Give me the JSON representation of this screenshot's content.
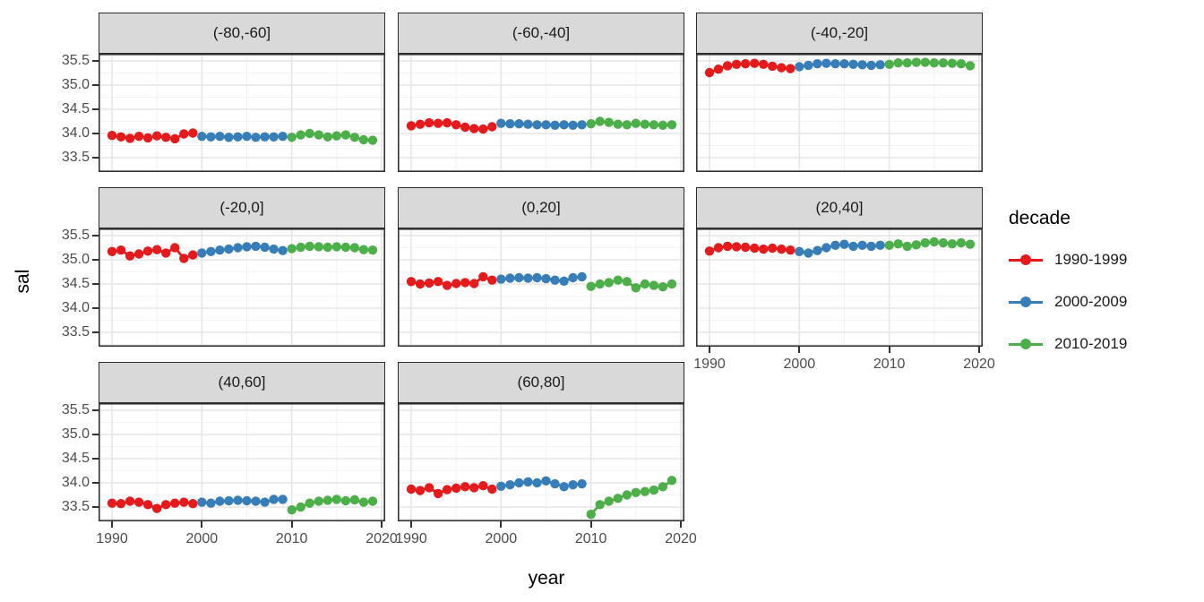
{
  "axes": {
    "x_label": "year",
    "y_label": "sal"
  },
  "legend": {
    "title": "decade",
    "items": [
      {
        "label": "1990-1999",
        "color": "#E41A1C"
      },
      {
        "label": "2000-2009",
        "color": "#377EB8"
      },
      {
        "label": "2010-2019",
        "color": "#4DAF4A"
      }
    ]
  },
  "chart_data": {
    "type": "scatter",
    "geom": "point+line",
    "title": "",
    "xlabel": "year",
    "ylabel": "sal",
    "facet_layout": "wrap-3-columns",
    "xlim": [
      1988.5,
      2020.5
    ],
    "ylim": [
      33.2,
      35.65
    ],
    "x_ticks": [
      {
        "label": "1990",
        "value": 1990
      },
      {
        "label": "2000",
        "value": 2000
      },
      {
        "label": "2010",
        "value": 2010
      },
      {
        "label": "2020",
        "value": 2020
      }
    ],
    "y_ticks": [
      {
        "label": "35.5",
        "value": 35.5
      },
      {
        "label": "35.0",
        "value": 35.0
      },
      {
        "label": "34.5",
        "value": 34.5
      },
      {
        "label": "34.0",
        "value": 34.0
      },
      {
        "label": "33.5",
        "value": 33.5
      }
    ],
    "x_minor_gridlines": [
      1995,
      2005,
      2015
    ],
    "y_minor_gridlines": [
      33.25,
      33.75,
      34.25,
      34.75,
      35.25
    ],
    "facets": [
      {
        "label": "(-80,-60]",
        "series": [
          {
            "name": "1990-1999",
            "start_year": 1990,
            "values": [
              33.96,
              33.93,
              33.9,
              33.94,
              33.91,
              33.95,
              33.92,
              33.89,
              33.99,
              34.01
            ]
          },
          {
            "name": "2000-2009",
            "start_year": 2000,
            "values": [
              33.94,
              33.93,
              33.94,
              33.92,
              33.93,
              33.94,
              33.92,
              33.93,
              33.93,
              33.94
            ]
          },
          {
            "name": "2010-2019",
            "start_year": 2010,
            "values": [
              33.92,
              33.97,
              34.0,
              33.97,
              33.93,
              33.95,
              33.97,
              33.92,
              33.87,
              33.86
            ]
          }
        ]
      },
      {
        "label": "(-60,-40]",
        "series": [
          {
            "name": "1990-1999",
            "start_year": 1990,
            "values": [
              34.16,
              34.19,
              34.22,
              34.21,
              34.22,
              34.18,
              34.13,
              34.1,
              34.09,
              34.14
            ]
          },
          {
            "name": "2000-2009",
            "start_year": 2000,
            "values": [
              34.21,
              34.2,
              34.2,
              34.19,
              34.18,
              34.18,
              34.17,
              34.18,
              34.17,
              34.18
            ]
          },
          {
            "name": "2010-2019",
            "start_year": 2010,
            "values": [
              34.2,
              34.25,
              34.23,
              34.19,
              34.18,
              34.21,
              34.19,
              34.18,
              34.17,
              34.18
            ]
          }
        ]
      },
      {
        "label": "(-40,-20]",
        "series": [
          {
            "name": "1990-1999",
            "start_year": 1990,
            "values": [
              35.26,
              35.33,
              35.4,
              35.43,
              35.44,
              35.45,
              35.43,
              35.39,
              35.36,
              35.34
            ]
          },
          {
            "name": "2000-2009",
            "start_year": 2000,
            "values": [
              35.38,
              35.41,
              35.44,
              35.45,
              35.44,
              35.44,
              35.43,
              35.42,
              35.41,
              35.42
            ]
          },
          {
            "name": "2010-2019",
            "start_year": 2010,
            "values": [
              35.43,
              35.46,
              35.46,
              35.47,
              35.47,
              35.46,
              35.46,
              35.45,
              35.44,
              35.4
            ]
          }
        ]
      },
      {
        "label": "(-20,0]",
        "series": [
          {
            "name": "1990-1999",
            "start_year": 1990,
            "values": [
              35.17,
              35.2,
              35.08,
              35.12,
              35.18,
              35.21,
              35.14,
              35.25,
              35.03,
              35.1
            ]
          },
          {
            "name": "2000-2009",
            "start_year": 2000,
            "values": [
              35.14,
              35.17,
              35.2,
              35.22,
              35.25,
              35.27,
              35.28,
              35.26,
              35.22,
              35.19
            ]
          },
          {
            "name": "2010-2019",
            "start_year": 2010,
            "values": [
              35.23,
              35.26,
              35.28,
              35.27,
              35.26,
              35.27,
              35.26,
              35.25,
              35.21,
              35.2
            ]
          }
        ]
      },
      {
        "label": "(0,20]",
        "series": [
          {
            "name": "1990-1999",
            "start_year": 1990,
            "values": [
              34.55,
              34.5,
              34.52,
              34.55,
              34.47,
              34.51,
              34.53,
              34.51,
              34.65,
              34.58
            ]
          },
          {
            "name": "2000-2009",
            "start_year": 2000,
            "values": [
              34.6,
              34.62,
              34.63,
              34.62,
              34.63,
              34.61,
              34.58,
              34.56,
              34.63,
              34.65
            ]
          },
          {
            "name": "2010-2019",
            "start_year": 2010,
            "values": [
              34.45,
              34.5,
              34.53,
              34.58,
              34.55,
              34.42,
              34.5,
              34.47,
              34.44,
              34.5
            ]
          }
        ]
      },
      {
        "label": "(20,40]",
        "series": [
          {
            "name": "1990-1999",
            "start_year": 1990,
            "values": [
              35.18,
              35.25,
              35.28,
              35.27,
              35.26,
              35.24,
              35.22,
              35.24,
              35.22,
              35.2
            ]
          },
          {
            "name": "2000-2009",
            "start_year": 2000,
            "values": [
              35.17,
              35.14,
              35.19,
              35.25,
              35.3,
              35.32,
              35.28,
              35.3,
              35.28,
              35.3
            ]
          },
          {
            "name": "2010-2019",
            "start_year": 2010,
            "values": [
              35.3,
              35.33,
              35.28,
              35.31,
              35.35,
              35.37,
              35.35,
              35.33,
              35.35,
              35.32
            ]
          }
        ]
      },
      {
        "label": "(40,60]",
        "series": [
          {
            "name": "1990-1999",
            "start_year": 1990,
            "values": [
              33.58,
              33.57,
              33.62,
              33.6,
              33.55,
              33.47,
              33.55,
              33.58,
              33.6,
              33.57
            ]
          },
          {
            "name": "2000-2009",
            "start_year": 2000,
            "values": [
              33.6,
              33.58,
              33.62,
              33.63,
              33.64,
              33.63,
              33.62,
              33.6,
              33.66,
              33.66
            ]
          },
          {
            "name": "2010-2019",
            "start_year": 2010,
            "values": [
              33.44,
              33.5,
              33.58,
              33.62,
              33.64,
              33.66,
              33.63,
              33.65,
              33.6,
              33.62
            ]
          }
        ]
      },
      {
        "label": "(60,80]",
        "series": [
          {
            "name": "1990-1999",
            "start_year": 1990,
            "values": [
              33.87,
              33.84,
              33.9,
              33.78,
              33.86,
              33.89,
              33.92,
              33.9,
              33.94,
              33.87
            ]
          },
          {
            "name": "2000-2009",
            "start_year": 2000,
            "values": [
              33.93,
              33.96,
              34.0,
              34.02,
              34.0,
              34.04,
              33.98,
              33.92,
              33.96,
              33.98
            ]
          },
          {
            "name": "2010-2019",
            "start_year": 2010,
            "values": [
              33.35,
              33.55,
              33.62,
              33.68,
              33.75,
              33.8,
              33.82,
              33.85,
              33.92,
              34.05
            ]
          }
        ]
      }
    ]
  }
}
